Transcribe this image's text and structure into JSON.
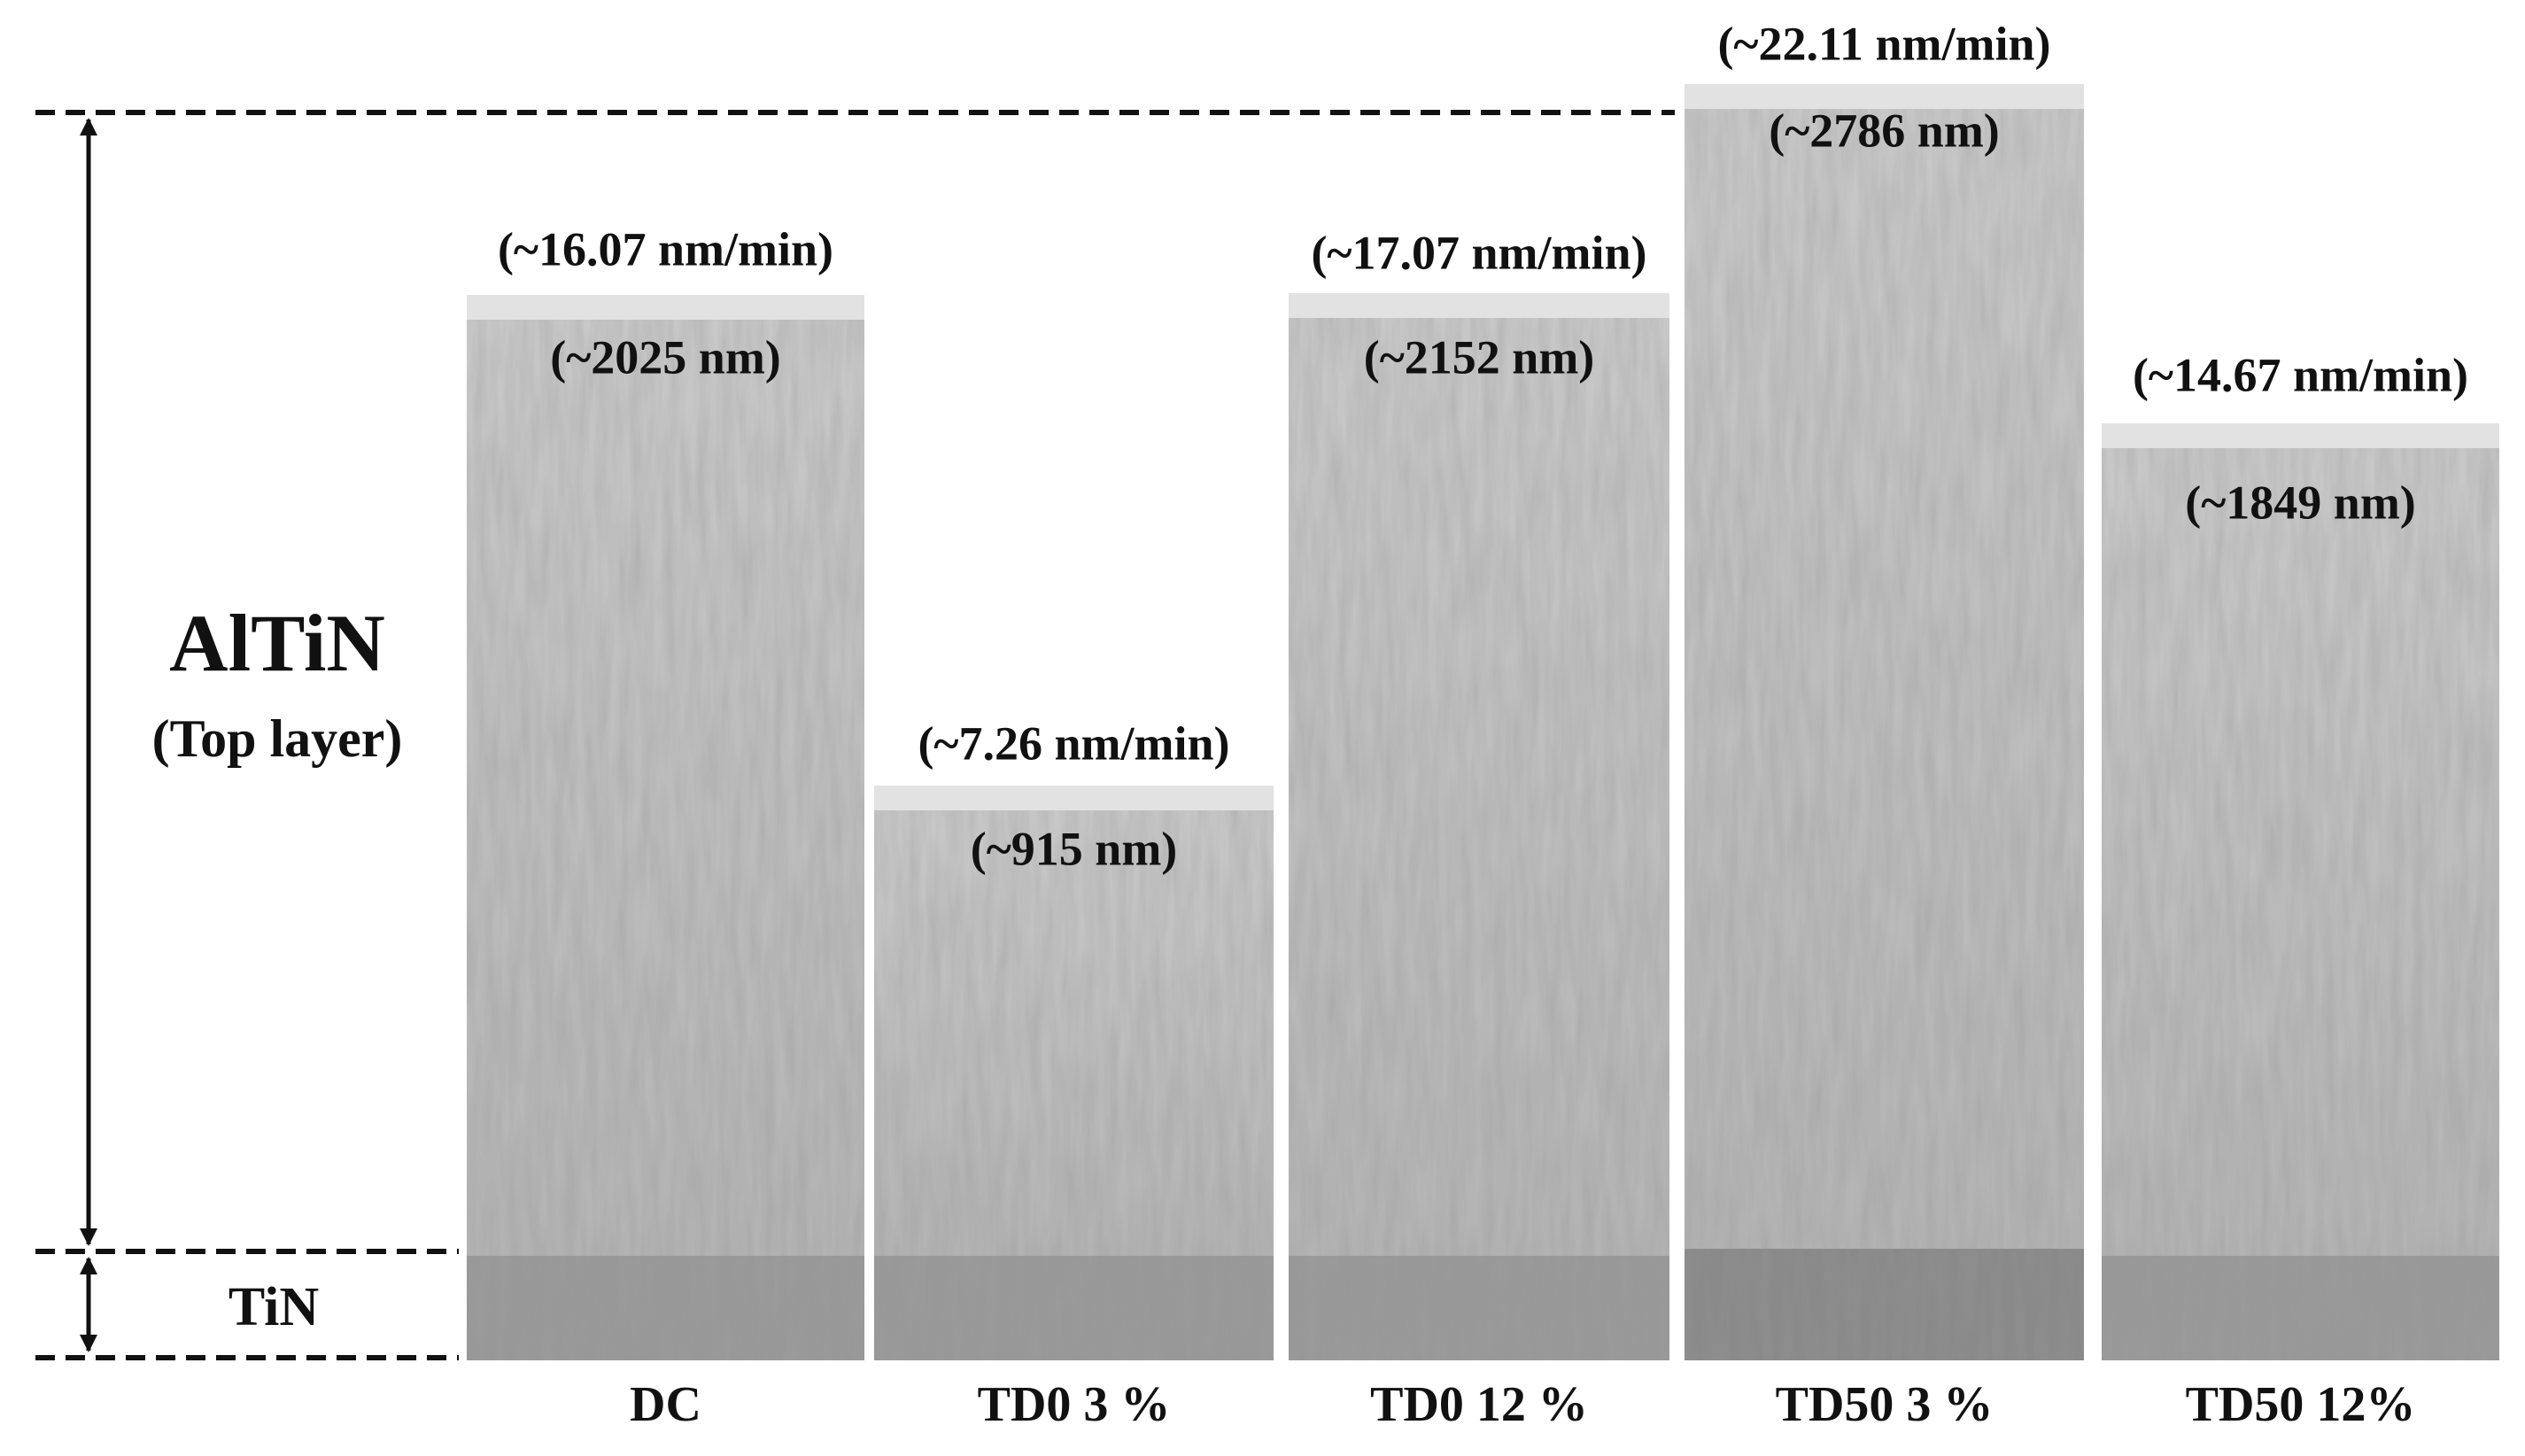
{
  "layers": {
    "top": "AlTiN",
    "top_note": "(Top layer)",
    "bottom": "TiN"
  },
  "samples": [
    {
      "label": "DC",
      "rate": "(~16.07 nm/min)",
      "thickness": "(~2025 nm)"
    },
    {
      "label": "TD0 3 %",
      "rate": "(~7.26 nm/min)",
      "thickness": "(~915 nm)"
    },
    {
      "label": "TD0 12 %",
      "rate": "(~17.07 nm/min)",
      "thickness": "(~2152 nm)"
    },
    {
      "label": "TD50 3 %",
      "rate": "(~22.11 nm/min)",
      "thickness": "(~2786 nm)"
    },
    {
      "label": "TD50 12%",
      "rate": "(~14.67 nm/min)",
      "thickness": "(~1849 nm)"
    }
  ]
}
